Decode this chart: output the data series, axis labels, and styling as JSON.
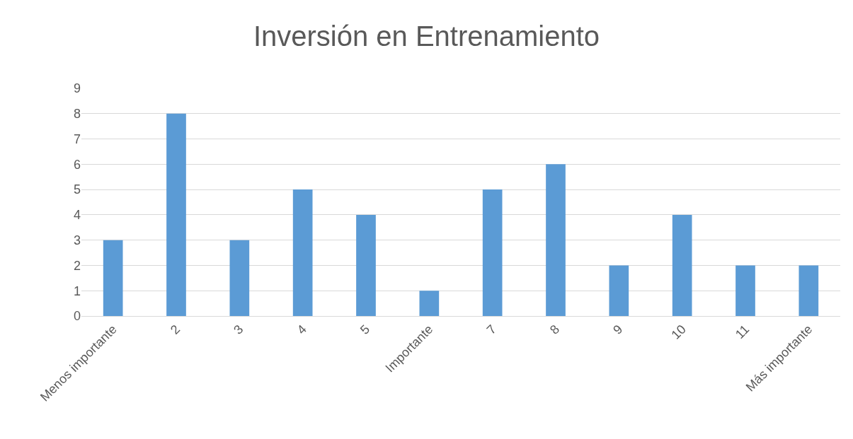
{
  "chart_data": {
    "type": "bar",
    "title": "Inversión en Entrenamiento",
    "categories": [
      "Menos importante",
      "2",
      "3",
      "4",
      "5",
      "Importante",
      "7",
      "8",
      "9",
      "10",
      "11",
      "Más importante"
    ],
    "values": [
      3,
      8,
      3,
      5,
      4,
      1,
      5,
      6,
      2,
      4,
      2,
      2
    ],
    "color": "#5b9bd5",
    "ylim": [
      0,
      9
    ],
    "yticks": [
      0,
      1,
      2,
      3,
      4,
      5,
      6,
      7,
      8,
      9
    ],
    "grid": "y",
    "legend": false
  }
}
